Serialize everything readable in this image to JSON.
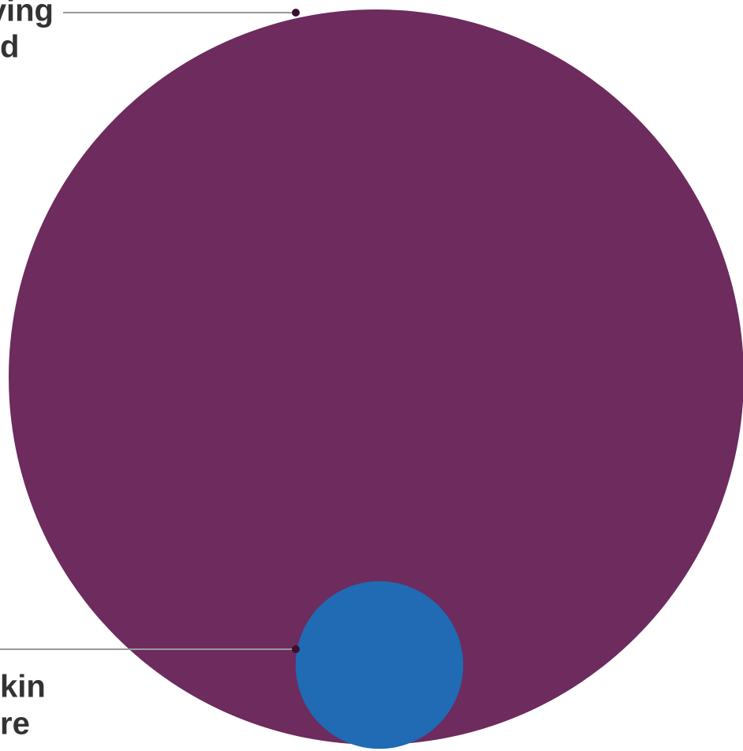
{
  "chart_data": {
    "type": "bubble",
    "series": [
      {
        "name": null,
        "color": "#6d2b5e",
        "label_lines": [
          "ving",
          "d"
        ],
        "values": [
          100
        ]
      },
      {
        "name": null,
        "color": "#206bb3",
        "label_lines": [
          "kin",
          "re"
        ],
        "values": [
          5.2
        ]
      }
    ]
  }
}
